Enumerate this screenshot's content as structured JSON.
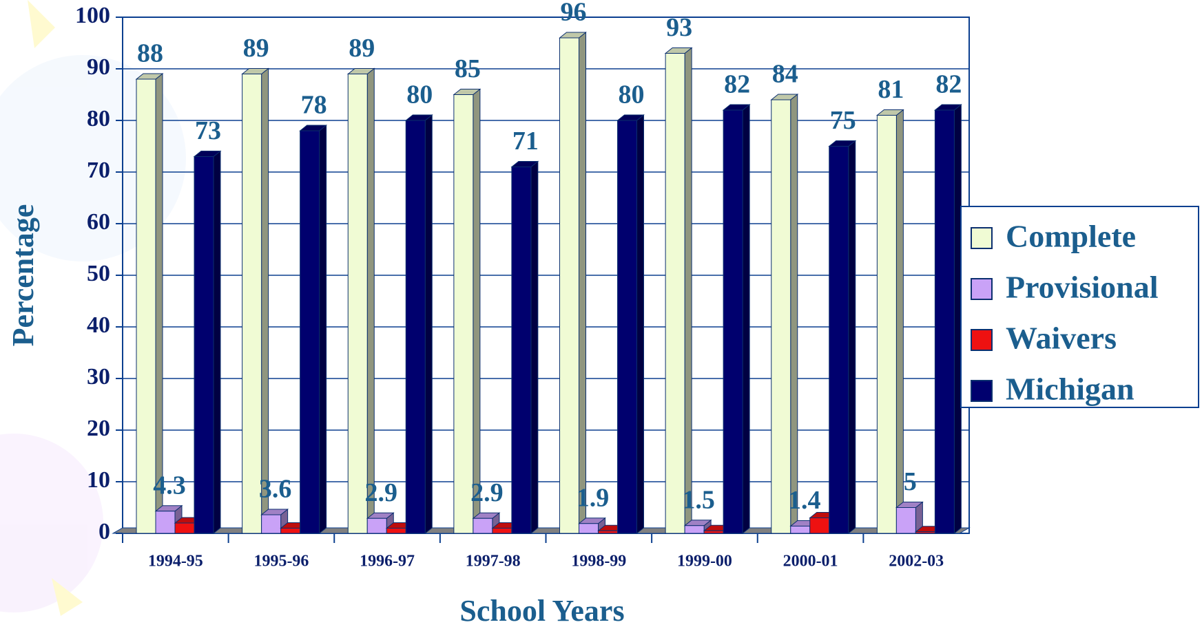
{
  "chart_data": {
    "type": "bar3d",
    "x_label": "School Years",
    "y_label": "Percentage",
    "categories": [
      "1994-95",
      "1995-96",
      "1996-97",
      "1997-98",
      "1998-99",
      "1999-00",
      "2000-01",
      "2002-03"
    ],
    "ylim": [
      0,
      100
    ],
    "yticks": [
      0,
      10,
      20,
      30,
      40,
      50,
      60,
      70,
      80,
      90,
      100
    ],
    "grid": true,
    "legend_position": "right",
    "series": [
      {
        "name": "Complete",
        "color": "#f0fbd4",
        "values": [
          88,
          89,
          89,
          85,
          96,
          93,
          84,
          81
        ]
      },
      {
        "name": "Provisional",
        "color": "#c9a2f7",
        "values": [
          4.3,
          3.6,
          2.9,
          2.9,
          1.9,
          1.5,
          1.4,
          5
        ]
      },
      {
        "name": "Waivers",
        "color": "#ee1111",
        "values": [
          2,
          1,
          1,
          1,
          0.5,
          0.5,
          3,
          0.3
        ]
      },
      {
        "name": "Michigan",
        "color": "#00006e",
        "values": [
          73,
          78,
          80,
          71,
          80,
          82,
          75,
          82
        ]
      }
    ],
    "labeled_series": [
      0,
      1,
      3
    ]
  }
}
